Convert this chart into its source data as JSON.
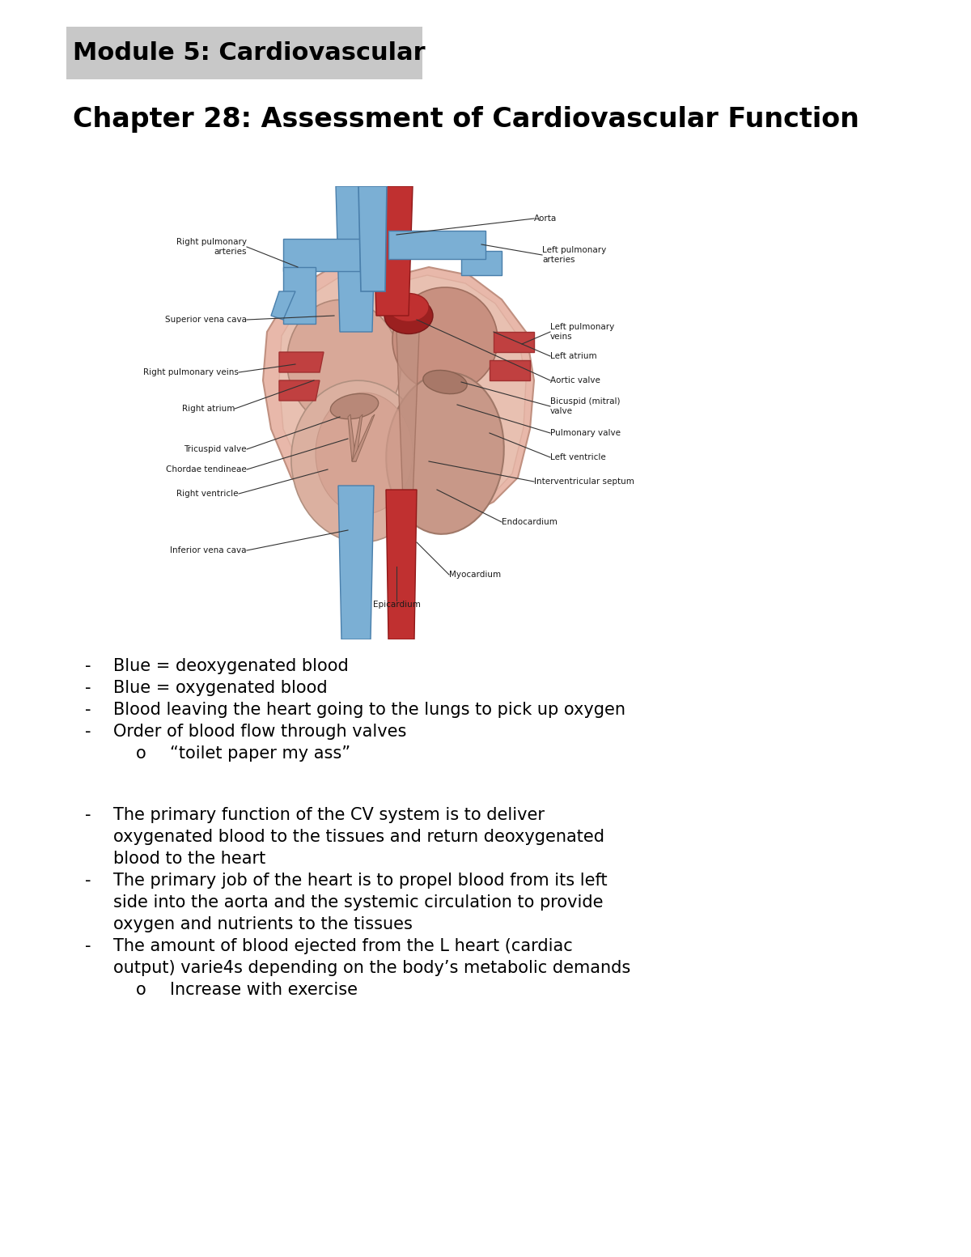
{
  "background_color": "#ffffff",
  "title1": "Module 5: Cardiovascular",
  "title1_highlight": "#c8c8c8",
  "title2": "Chapter 28: Assessment of Cardiovascular Function",
  "bullet_points": [
    {
      "level": 1,
      "text": "Blue = deoxygenated blood"
    },
    {
      "level": 1,
      "text": "Blue = oxygenated blood"
    },
    {
      "level": 1,
      "text": "Blood leaving the heart going to the lungs to pick up oxygen"
    },
    {
      "level": 1,
      "text": "Order of blood flow through valves"
    },
    {
      "level": 2,
      "text": "“toilet paper my ass”"
    },
    {
      "level": 0,
      "text": ""
    },
    {
      "level": 0,
      "text": ""
    },
    {
      "level": 1,
      "text": "The primary function of the CV system is to deliver\noxygenated blood to the tissues and return deoxygenated\nblood to the heart"
    },
    {
      "level": 1,
      "text": "The primary job of the heart is to propel blood from its left\nside into the aorta and the systemic circulation to provide\noxygen and nutrients to the tissues"
    },
    {
      "level": 1,
      "text": "The amount of blood ejected from the L heart (cardiac\noutput) varie4s depending on the body’s metabolic demands"
    },
    {
      "level": 2,
      "text": "Increase with exercise"
    }
  ],
  "font_size_title1": 22,
  "font_size_title2": 24,
  "font_size_body": 15,
  "text_color": "#000000",
  "heart_colors": {
    "blue_vessel": "#7bafd4",
    "blue_vessel_dark": "#4a7fab",
    "red_vessel": "#c03030",
    "red_vessel_dark": "#901818",
    "red_vein": "#c04040",
    "outer_heart": "#e8b8aa",
    "outer_heart_edge": "#c09080",
    "chamber_wall": "#d4a090",
    "chamber_inner": "#c08878",
    "ventricle_wall": "#ddbba8",
    "left_ventricle": "#c89888",
    "dark_chamber": "#a07060",
    "cream": "#f0ddd5",
    "inner_wall": "#e8c8b8"
  },
  "label_fontsize": 7.5,
  "label_color": "#1a1a1a"
}
